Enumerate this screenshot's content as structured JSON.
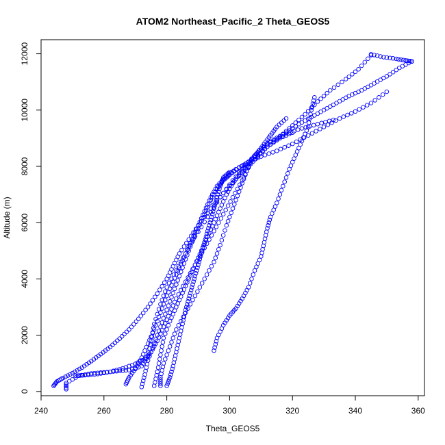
{
  "chart_data": {
    "type": "scatter",
    "title": "ATOM2 Northeast_Pacific_2 Theta_GEOS5",
    "xlabel": "Theta_GEOS5",
    "ylabel": "Altitude (m)",
    "xlim": [
      240,
      362
    ],
    "ylim": [
      -150,
      12500
    ],
    "xticks": [
      240,
      260,
      280,
      300,
      320,
      340,
      360
    ],
    "yticks": [
      0,
      2000,
      4000,
      6000,
      8000,
      10000,
      12000
    ],
    "marker": "open-circle",
    "color": "#0000ff",
    "series": [
      {
        "points": [
          [
            244,
            200
          ],
          [
            245,
            350
          ],
          [
            247,
            480
          ],
          [
            250,
            650
          ],
          [
            253,
            850
          ],
          [
            256,
            1080
          ],
          [
            259,
            1330
          ],
          [
            262,
            1580
          ],
          [
            265,
            1880
          ],
          [
            268,
            2200
          ],
          [
            271,
            2580
          ],
          [
            274,
            3000
          ],
          [
            277,
            3480
          ],
          [
            280,
            4000
          ],
          [
            282,
            4450
          ],
          [
            284,
            4900
          ],
          [
            287,
            5400
          ],
          [
            290,
            5900
          ],
          [
            294,
            6500
          ],
          [
            298,
            7050
          ],
          [
            302,
            7550
          ],
          [
            306,
            8000
          ],
          [
            309,
            8350
          ],
          [
            312,
            8700
          ],
          [
            316,
            9050
          ],
          [
            320,
            9450
          ],
          [
            324,
            9850
          ],
          [
            328,
            10300
          ],
          [
            332,
            10700
          ],
          [
            337,
            11100
          ],
          [
            341,
            11450
          ],
          [
            345,
            11950
          ]
        ]
      },
      {
        "points": [
          [
            345,
            11980
          ],
          [
            349,
            11880
          ],
          [
            353,
            11820
          ],
          [
            356,
            11760
          ],
          [
            358,
            11730
          ]
        ]
      },
      {
        "points": [
          [
            358,
            11730
          ],
          [
            354,
            11500
          ],
          [
            350,
            11200
          ],
          [
            346,
            10950
          ],
          [
            342,
            10700
          ],
          [
            338,
            10500
          ],
          [
            334,
            10250
          ],
          [
            330,
            10000
          ],
          [
            326,
            9750
          ],
          [
            322,
            9500
          ],
          [
            318,
            9200
          ],
          [
            314,
            8950
          ],
          [
            310,
            8650
          ],
          [
            307,
            8250
          ],
          [
            305,
            7700
          ],
          [
            303,
            7100
          ],
          [
            301,
            6500
          ],
          [
            299,
            5900
          ],
          [
            297,
            5200
          ],
          [
            295,
            4600
          ],
          [
            292,
            4000
          ],
          [
            289,
            3400
          ],
          [
            286,
            2800
          ],
          [
            283,
            2200
          ],
          [
            281,
            1600
          ],
          [
            279,
            1000
          ],
          [
            278,
            500
          ],
          [
            278,
            200
          ]
        ]
      },
      {
        "points": [
          [
            295,
            1450
          ],
          [
            296,
            1900
          ],
          [
            298,
            2350
          ],
          [
            300,
            2700
          ],
          [
            302,
            2950
          ],
          [
            304,
            3300
          ],
          [
            306,
            3700
          ],
          [
            308,
            4300
          ],
          [
            310,
            4800
          ],
          [
            311,
            5300
          ],
          [
            312,
            5800
          ],
          [
            313,
            6200
          ],
          [
            315,
            6700
          ],
          [
            317,
            7300
          ],
          [
            319,
            7900
          ],
          [
            321,
            8400
          ],
          [
            323,
            8900
          ],
          [
            325,
            9400
          ],
          [
            326,
            10000
          ],
          [
            327,
            10450
          ]
        ]
      },
      {
        "points": [
          [
            248,
            80
          ],
          [
            248,
            300
          ],
          [
            252,
            560
          ],
          [
            256,
            640
          ],
          [
            260,
            680
          ],
          [
            264,
            720
          ],
          [
            268,
            760
          ],
          [
            272,
            900
          ],
          [
            274,
            1250
          ],
          [
            275,
            1800
          ],
          [
            276,
            2400
          ],
          [
            278,
            3100
          ],
          [
            280,
            3700
          ],
          [
            283,
            4300
          ],
          [
            286,
            4900
          ],
          [
            289,
            5500
          ],
          [
            293,
            6200
          ],
          [
            297,
            6900
          ],
          [
            301,
            7500
          ],
          [
            305,
            8050
          ],
          [
            309,
            8500
          ],
          [
            313,
            8850
          ],
          [
            318,
            9150
          ],
          [
            323,
            9350
          ],
          [
            328,
            9500
          ],
          [
            333,
            9650
          ]
        ]
      },
      {
        "points": [
          [
            267,
            260
          ],
          [
            268,
            500
          ],
          [
            270,
            800
          ],
          [
            272,
            1200
          ],
          [
            274,
            1700
          ],
          [
            276,
            2200
          ],
          [
            278,
            2800
          ],
          [
            280,
            3400
          ],
          [
            282,
            3900
          ],
          [
            284,
            4400
          ],
          [
            286,
            4900
          ],
          [
            288,
            5400
          ],
          [
            290,
            5900
          ],
          [
            292,
            6400
          ],
          [
            294,
            6900
          ],
          [
            296,
            7300
          ],
          [
            299,
            7650
          ],
          [
            302,
            7900
          ],
          [
            306,
            8150
          ],
          [
            310,
            8350
          ],
          [
            315,
            8550
          ],
          [
            320,
            8800
          ],
          [
            325,
            9100
          ],
          [
            330,
            9400
          ],
          [
            335,
            9700
          ],
          [
            340,
            9950
          ],
          [
            345,
            10250
          ],
          [
            350,
            10650
          ]
        ]
      },
      {
        "points": [
          [
            272,
            160
          ],
          [
            273,
            600
          ],
          [
            274,
            1100
          ],
          [
            276,
            1700
          ],
          [
            278,
            2300
          ],
          [
            280,
            2900
          ],
          [
            282,
            3500
          ],
          [
            284,
            4100
          ],
          [
            286,
            4700
          ],
          [
            288,
            5300
          ],
          [
            290,
            5800
          ],
          [
            292,
            6300
          ],
          [
            294,
            6800
          ],
          [
            296,
            7200
          ],
          [
            298,
            7500
          ],
          [
            300,
            7700
          ],
          [
            303,
            7950
          ],
          [
            306,
            8150
          ],
          [
            309,
            8400
          ],
          [
            312,
            8700
          ],
          [
            316,
            9000
          ],
          [
            320,
            9200
          ]
        ]
      },
      {
        "points": [
          [
            276,
            200
          ],
          [
            277,
            700
          ],
          [
            278,
            1300
          ],
          [
            279,
            1900
          ],
          [
            281,
            2500
          ],
          [
            283,
            3000
          ],
          [
            285,
            3500
          ],
          [
            287,
            4000
          ],
          [
            289,
            4500
          ],
          [
            291,
            5000
          ],
          [
            293,
            5500
          ],
          [
            295,
            6000
          ],
          [
            297,
            6500
          ],
          [
            299,
            7000
          ],
          [
            301,
            7400
          ],
          [
            303,
            7700
          ],
          [
            305,
            7950
          ],
          [
            307,
            8200
          ],
          [
            309,
            8500
          ],
          [
            311,
            8800
          ],
          [
            313,
            9100
          ],
          [
            315,
            9400
          ],
          [
            318,
            9700
          ]
        ]
      },
      {
        "points": [
          [
            251,
            560
          ],
          [
            254,
            580
          ],
          [
            258,
            620
          ],
          [
            262,
            700
          ],
          [
            266,
            820
          ],
          [
            270,
            980
          ],
          [
            273,
            1150
          ],
          [
            275,
            1400
          ],
          [
            277,
            1800
          ],
          [
            279,
            2300
          ],
          [
            281,
            2800
          ],
          [
            283,
            3300
          ],
          [
            286,
            3900
          ],
          [
            289,
            4500
          ],
          [
            292,
            5100
          ],
          [
            295,
            5700
          ],
          [
            298,
            6300
          ],
          [
            301,
            6900
          ],
          [
            304,
            7500
          ],
          [
            306,
            7950
          ]
        ]
      },
      {
        "points": [
          [
            280,
            200
          ],
          [
            281,
            500
          ],
          [
            282,
            900
          ],
          [
            283,
            1400
          ],
          [
            284,
            1900
          ],
          [
            285,
            2400
          ],
          [
            286,
            2900
          ],
          [
            287,
            3300
          ],
          [
            288,
            3700
          ],
          [
            289,
            4100
          ],
          [
            290,
            4500
          ],
          [
            291,
            4900
          ],
          [
            292,
            5300
          ],
          [
            293,
            5700
          ],
          [
            294,
            6100
          ],
          [
            295,
            6500
          ],
          [
            296,
            6900
          ],
          [
            297,
            7300
          ],
          [
            298,
            7600
          ],
          [
            300,
            7800
          ]
        ]
      }
    ]
  }
}
